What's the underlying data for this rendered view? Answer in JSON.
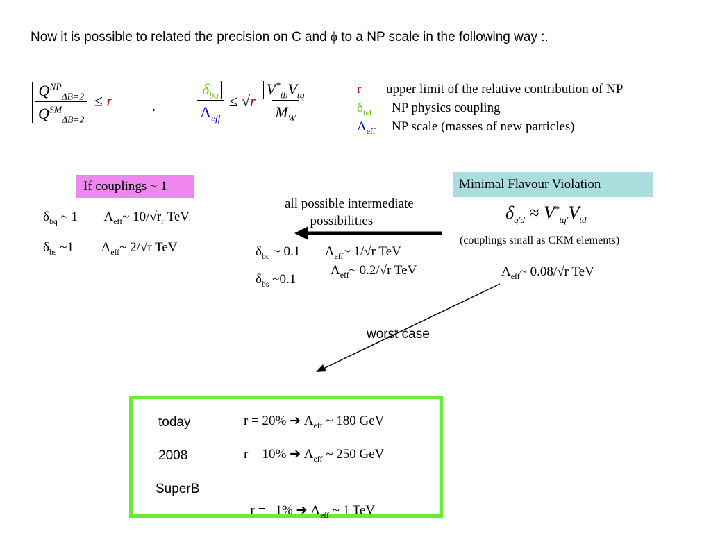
{
  "intro": {
    "before_phi": "Now it is possible to related the precision on C and ",
    "phi": "ϕ",
    "after_phi": " to a NP scale in the following way :."
  },
  "formula1": {
    "Q": "Q",
    "np_sup": "NP",
    "sm_sup": "SM",
    "sub": "ΔB=2",
    "leq": "≤",
    "r": "r",
    "arrow": "→"
  },
  "formula2": {
    "delta": "δ",
    "delta_sub": "bq",
    "lambda": "Λ",
    "lambda_sub": "eff",
    "leq": "≤",
    "sqrt": "√",
    "r": "r",
    "V": "V",
    "Vtb_sup": "*",
    "Vtb_sub": "tb",
    "Vtq_sub": "tq",
    "M": "M",
    "M_sub": "W"
  },
  "legend": {
    "r_symbol": "r",
    "r_text": "upper limit of the relative contribution of NP",
    "delta_symbol": "δ",
    "delta_sub": "bd",
    "delta_text": "NP physics coupling",
    "lambda_symbol": "Λ",
    "lambda_sub": "eff",
    "lambda_text": "NP scale (masses of new particles)"
  },
  "left_block": {
    "title": "If  couplings ~ 1",
    "rows": [
      {
        "delta": "δ",
        "delta_sub": "bq",
        "delta_rest": " ~ 1",
        "lambda": "Λ",
        "lambda_sub": "eff",
        "lambda_rest": "~ 10/√r",
        "r_sub": "r",
        "unit": " TeV"
      },
      {
        "delta": "δ",
        "delta_sub": "bs",
        "delta_rest": " ~1",
        "lambda": "Λ",
        "lambda_sub": "eff",
        "lambda_rest": "~ 2/√r TeV"
      }
    ]
  },
  "middle_block": {
    "arrow_label_line1": "all possible intermediate",
    "arrow_label_line2": "possibilities",
    "rows": [
      {
        "delta": "δ",
        "delta_sub": "bq",
        "delta_rest": " ~ 0.1",
        "lambda": "Λ",
        "lambda_sub": "eff",
        "lambda_rest": "~ 1/√r TeV"
      },
      {
        "delta": "δ",
        "delta_sub": "bs",
        "delta_rest": " ~0.1",
        "lambda": "Λ",
        "lambda_sub": "eff",
        "lambda_rest": "~ 0.2/√r TeV"
      }
    ]
  },
  "right_block": {
    "title": "Minimal Flavour Violation",
    "delta": "δ",
    "delta_sub": "q'd",
    "approx": "≈",
    "V": "V",
    "V1_sup": "*",
    "V1_sub": "tq'",
    "V2_sub": "td",
    "note": "(couplings small as CKM elements)",
    "lambda": "Λ",
    "lambda_sub": "eff",
    "lambda_rest": "~ 0.08/√r TeV"
  },
  "worst_case_label": "worst case",
  "results": [
    {
      "label": "today",
      "r_text": "r = 20%",
      "arrow": "➔",
      "lambda": "Λ",
      "lambda_sub": "eff",
      "value": " ~ 180 GeV"
    },
    {
      "label": "2008",
      "r_text": "r = 10%",
      "arrow": "➔",
      "lambda": "Λ",
      "lambda_sub": "eff",
      "value": " ~ 250 GeV"
    },
    {
      "label": "SuperB",
      "r_text": "r =   1%",
      "arrow": "➔",
      "lambda": "Λ",
      "lambda_sub": "eff",
      "value": " ~ 1 TeV"
    }
  ],
  "colors": {
    "red": "#cc0000",
    "green": "#66cc00",
    "blue": "#0000cc",
    "box_if": "#ee88ee",
    "box_mfv": "#aadddd",
    "result_border": "#66ee33"
  }
}
